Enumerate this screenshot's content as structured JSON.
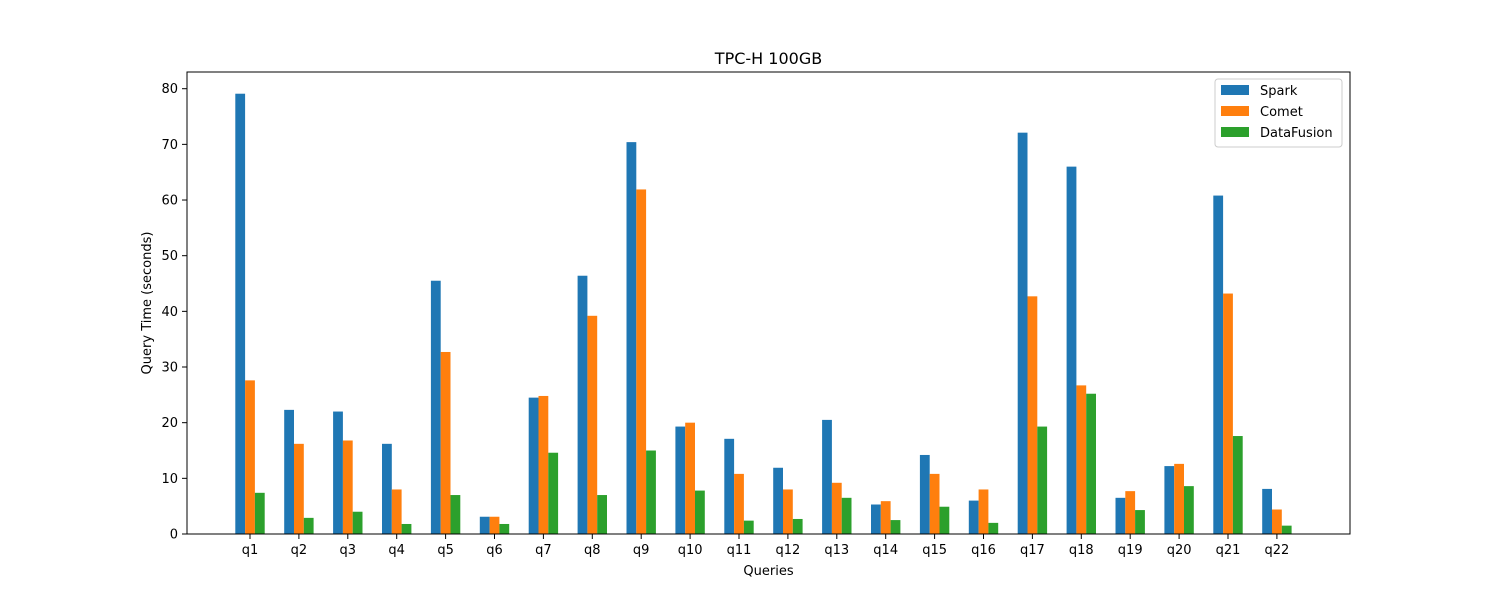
{
  "chart_data": {
    "type": "bar",
    "title": "TPC-H 100GB",
    "xlabel": "Queries",
    "ylabel": "Query Time (seconds)",
    "ylim": [
      0,
      83
    ],
    "yticks": [
      0,
      10,
      20,
      30,
      40,
      50,
      60,
      70,
      80
    ],
    "grid": false,
    "legend_position": "top-right",
    "categories": [
      "q1",
      "q2",
      "q3",
      "q4",
      "q5",
      "q6",
      "q7",
      "q8",
      "q9",
      "q10",
      "q11",
      "q12",
      "q13",
      "q14",
      "q15",
      "q16",
      "q17",
      "q18",
      "q19",
      "q20",
      "q21",
      "q22"
    ],
    "series": [
      {
        "name": "Spark",
        "color": "#1f77b4",
        "values": [
          79.1,
          22.3,
          22.0,
          16.2,
          45.5,
          3.1,
          24.5,
          46.4,
          70.4,
          19.3,
          17.1,
          11.9,
          20.5,
          5.3,
          14.2,
          6.0,
          72.1,
          66.0,
          6.5,
          12.2,
          60.8,
          8.1
        ]
      },
      {
        "name": "Comet",
        "color": "#ff7f0e",
        "values": [
          27.6,
          16.2,
          16.8,
          8.0,
          32.7,
          3.1,
          24.8,
          39.2,
          61.9,
          20.0,
          10.8,
          8.0,
          9.2,
          5.9,
          10.8,
          8.0,
          42.7,
          26.7,
          7.7,
          12.6,
          43.2,
          4.4
        ]
      },
      {
        "name": "DataFusion",
        "color": "#2ca02c",
        "values": [
          7.4,
          2.9,
          4.0,
          1.8,
          7.0,
          1.8,
          14.6,
          7.0,
          15.0,
          7.8,
          2.4,
          2.7,
          6.5,
          2.5,
          4.9,
          2.0,
          19.3,
          25.2,
          4.3,
          8.6,
          17.6,
          1.5
        ]
      }
    ]
  }
}
